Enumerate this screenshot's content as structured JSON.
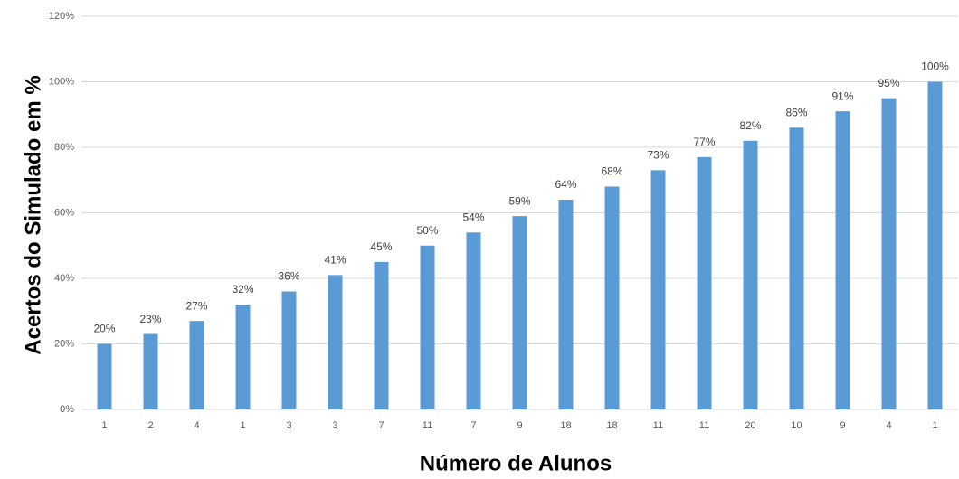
{
  "chart_data": {
    "type": "bar",
    "x_label": "Número de Alunos",
    "y_label": "Acertos do Simulado em %",
    "categories": [
      "1",
      "2",
      "4",
      "1",
      "3",
      "3",
      "7",
      "11",
      "7",
      "9",
      "18",
      "18",
      "11",
      "11",
      "20",
      "10",
      "9",
      "4",
      "1"
    ],
    "values": [
      20,
      23,
      27,
      32,
      36,
      41,
      45,
      50,
      54,
      59,
      64,
      68,
      73,
      77,
      82,
      86,
      91,
      95,
      100
    ],
    "value_labels": [
      "20%",
      "23%",
      "27%",
      "32%",
      "36%",
      "41%",
      "45%",
      "50%",
      "54%",
      "59%",
      "64%",
      "68%",
      "73%",
      "77%",
      "82%",
      "86%",
      "91%",
      "95%",
      "100%"
    ],
    "color": "#5b9bd5",
    "ylim": [
      0,
      120
    ],
    "yticks": [
      {
        "value": 0,
        "label": "0%"
      },
      {
        "value": 20,
        "label": "20%"
      },
      {
        "value": 40,
        "label": "40%"
      },
      {
        "value": 60,
        "label": "60%"
      },
      {
        "value": 80,
        "label": "80%"
      },
      {
        "value": 100,
        "label": "100%"
      },
      {
        "value": 120,
        "label": "120%"
      }
    ],
    "grid": true
  }
}
